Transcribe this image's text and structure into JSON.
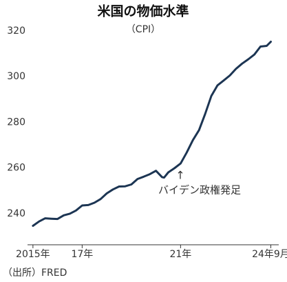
{
  "chart_data": {
    "type": "line",
    "title": "米国の物価水準",
    "subtitle": "（CPI）",
    "annotation": {
      "arrow": "↑",
      "text": "バイデン政権発足"
    },
    "source": "（出所）FRED",
    "color": "#1c3553",
    "x": [
      2015.0,
      2015.25,
      2015.5,
      2015.75,
      2016.0,
      2016.25,
      2016.5,
      2016.75,
      2017.0,
      2017.25,
      2017.5,
      2017.75,
      2018.0,
      2018.25,
      2018.5,
      2018.75,
      2019.0,
      2019.25,
      2019.5,
      2019.75,
      2020.0,
      2020.25,
      2020.33,
      2020.5,
      2020.75,
      2021.0,
      2021.25,
      2021.5,
      2021.75,
      2022.0,
      2022.25,
      2022.5,
      2022.75,
      2023.0,
      2023.25,
      2023.5,
      2023.75,
      2024.0,
      2024.25,
      2024.5,
      2024.667
    ],
    "values": [
      234.7,
      236.6,
      238.0,
      237.8,
      237.7,
      239.3,
      240.0,
      241.4,
      243.6,
      243.8,
      244.8,
      246.4,
      248.9,
      250.6,
      251.9,
      252.0,
      252.8,
      255.2,
      256.2,
      257.3,
      258.8,
      256.0,
      255.8,
      258.1,
      259.9,
      262.0,
      266.8,
      272.2,
      276.6,
      283.7,
      291.5,
      296.2,
      298.3,
      300.5,
      303.4,
      305.7,
      307.6,
      309.7,
      313.2,
      313.5,
      315.3
    ],
    "xlim": [
      2014.78,
      2024.99
    ],
    "xticks": [
      {
        "value": 2015,
        "label": "2015年"
      },
      {
        "value": 2017,
        "label": "17年"
      },
      {
        "value": 2021,
        "label": "21年"
      },
      {
        "value": 2024.667,
        "label": "24年9月"
      }
    ],
    "ylim": [
      226.4,
      323
    ],
    "yticks": [
      240,
      260,
      280,
      300,
      320
    ],
    "grid": false
  }
}
